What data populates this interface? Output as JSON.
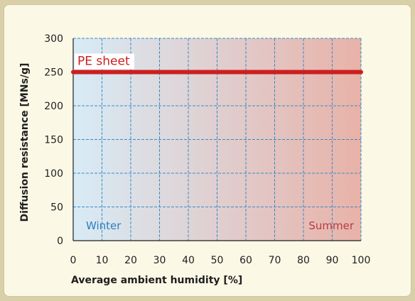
{
  "chart_data": {
    "type": "line",
    "xlabel": "Average ambient humidity [%]",
    "ylabel": "Diffusion resistance [MNs/g]",
    "xlim": [
      0,
      100
    ],
    "ylim": [
      0,
      300
    ],
    "x_ticks": [
      0,
      10,
      20,
      30,
      40,
      50,
      60,
      70,
      80,
      90,
      100
    ],
    "y_ticks": [
      0,
      50,
      100,
      150,
      200,
      250,
      300
    ],
    "grid": true,
    "background_gradient": {
      "from": "#d8ebf6",
      "to": "#e8b2a8"
    },
    "series": [
      {
        "name": "PE sheet",
        "color": "#cc1f1f",
        "x": [
          0,
          100
        ],
        "y": [
          250,
          250
        ]
      }
    ],
    "annotations": [
      {
        "text": "Winter",
        "color": "#2a7fc0"
      },
      {
        "text": "Summer",
        "color": "#b93a45"
      }
    ],
    "colors": {
      "grid": "#3a8cc8",
      "axis": "#1e1e1e"
    }
  }
}
